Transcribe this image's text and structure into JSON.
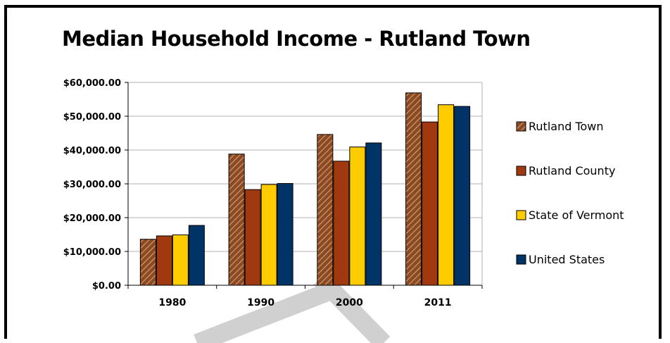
{
  "chart_data": {
    "type": "bar",
    "title": "Median Household Income - Rutland Town",
    "xlabel": "",
    "ylabel": "",
    "categories": [
      "1980",
      "1990",
      "2000",
      "2011"
    ],
    "y_tick_labels": [
      "$0.00",
      "$10,000.00",
      "$20,000.00",
      "$30,000.00",
      "$40,000.00",
      "$50,000.00",
      "$60,000.00"
    ],
    "ylim": [
      0,
      60000
    ],
    "grid": true,
    "legend_position": "right",
    "series": [
      {
        "name": "Rutland Town",
        "values": [
          13600,
          38800,
          44600,
          56900
        ],
        "color": "#8b4a26",
        "pattern": "diagonal-hatch"
      },
      {
        "name": "Rutland County",
        "values": [
          14600,
          28300,
          36700,
          48300
        ],
        "color": "#a0390f",
        "pattern": "solid"
      },
      {
        "name": "State of Vermont",
        "values": [
          14900,
          29800,
          40900,
          53400
        ],
        "color": "#ffcc00",
        "pattern": "solid"
      },
      {
        "name": "United States",
        "values": [
          17700,
          30100,
          42100,
          52900
        ],
        "color": "#003366",
        "pattern": "solid"
      }
    ]
  }
}
